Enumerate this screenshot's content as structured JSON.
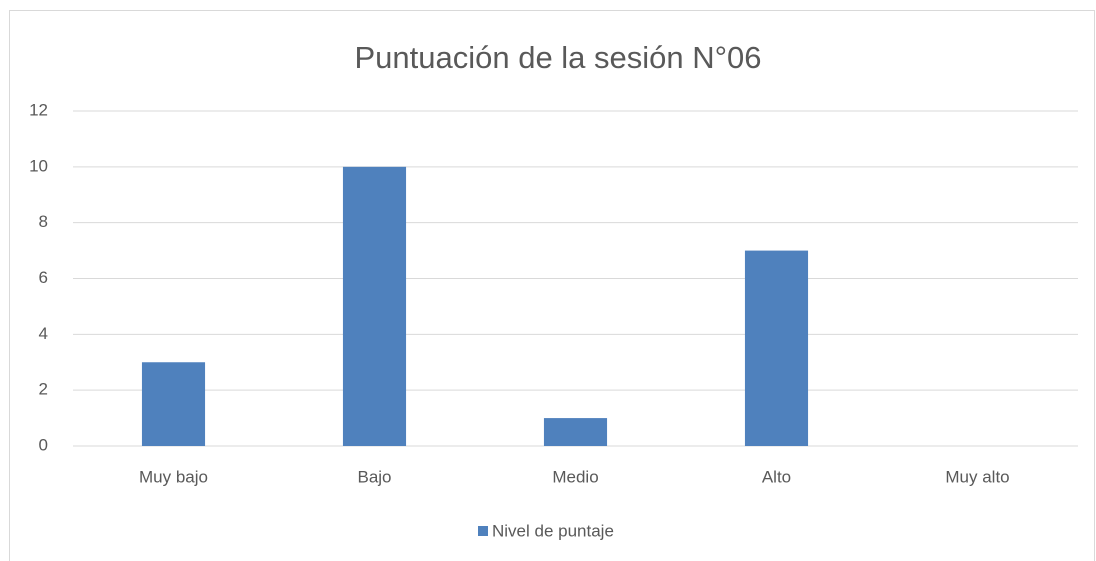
{
  "chart_data": {
    "type": "bar",
    "title": "Puntuación de la sesión N°06",
    "categories": [
      "Muy bajo",
      "Bajo",
      "Medio",
      "Alto",
      "Muy alto"
    ],
    "series": [
      {
        "name": "Nivel de puntaje",
        "color": "#4f81bd",
        "values": [
          3,
          10,
          1,
          7,
          0
        ]
      }
    ],
    "ylim": [
      0,
      12
    ],
    "yticks": [
      0,
      2,
      4,
      6,
      8,
      10,
      12
    ],
    "grid": true,
    "legend": "bottom"
  }
}
